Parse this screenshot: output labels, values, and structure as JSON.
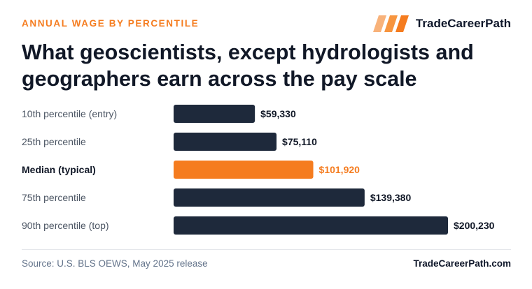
{
  "header": {
    "kicker": "ANNUAL WAGE BY PERCENTILE",
    "brand_name": "TradeCareerPath",
    "title": "What geoscientists, except hydrologists and geographers earn across the pay scale"
  },
  "footer": {
    "source": "Source: U.S. BLS OEWS, May 2025 release",
    "site": "TradeCareerPath.com"
  },
  "colors": {
    "bar": "#1e293b",
    "highlight": "#f57c1f",
    "label": "#4b5563",
    "label_highlight": "#111827",
    "value": "#111827"
  },
  "chart_data": {
    "type": "bar",
    "orientation": "horizontal",
    "categories": [
      "10th percentile (entry)",
      "25th percentile",
      "Median (typical)",
      "75th percentile",
      "90th percentile (top)"
    ],
    "values": [
      59330,
      75110,
      101920,
      139380,
      200230
    ],
    "value_labels": [
      "$59,330",
      "$75,110",
      "$101,920",
      "$139,380",
      "$200,230"
    ],
    "highlight_index": 2,
    "xlim": [
      0,
      200230
    ],
    "grid": false,
    "legend": "none"
  }
}
